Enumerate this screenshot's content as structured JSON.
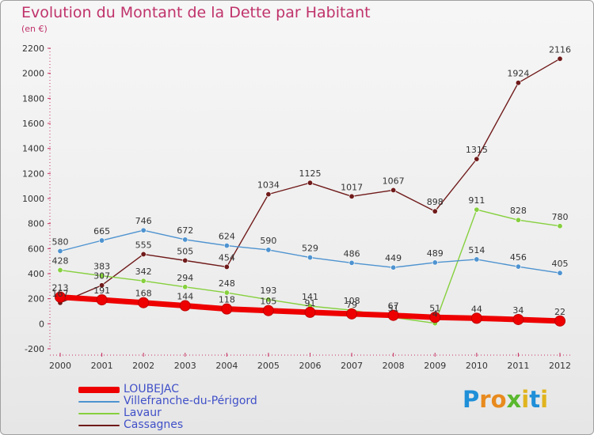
{
  "header": {
    "title": "Evolution du Montant de la Dette par Habitant",
    "subtitle": "(en €)"
  },
  "logo": {
    "text": "Proxiti",
    "letters": [
      "P",
      "r",
      "o",
      "x",
      "i",
      "t",
      "i"
    ],
    "colors": [
      "#1f8fd8",
      "#e88a1e",
      "#e88a1e",
      "#5ab82e",
      "#e0b41e",
      "#1f8fd8",
      "#e0b41e"
    ]
  },
  "chart_data": {
    "type": "line",
    "title": "Evolution du Montant de la Dette par Habitant",
    "subtitle": "(en €)",
    "categories": [
      "2000",
      "2001",
      "2002",
      "2003",
      "2004",
      "2005",
      "2006",
      "2007",
      "2008",
      "2009",
      "2010",
      "2011",
      "2012"
    ],
    "ylim": [
      -200,
      2200
    ],
    "yticks": [
      -200,
      0,
      200,
      400,
      600,
      800,
      1000,
      1200,
      1400,
      1600,
      1800,
      2000,
      2200
    ],
    "grid": false,
    "legend_position": "bottom-left",
    "series": [
      {
        "name": "LOUBEJAC",
        "color": "#ee0000",
        "values": [
          213,
          191,
          168,
          144,
          118,
          105,
          91,
          79,
          67,
          51,
          44,
          34,
          22
        ]
      },
      {
        "name": "Villefranche-du-Périgord",
        "color": "#4e93d0",
        "values": [
          580,
          665,
          746,
          672,
          624,
          590,
          529,
          486,
          449,
          489,
          514,
          456,
          405
        ]
      },
      {
        "name": "Lavaur",
        "color": "#86d03e",
        "values": [
          428,
          383,
          342,
          294,
          248,
          193,
          141,
          108,
          51,
          4,
          911,
          828,
          780
        ]
      },
      {
        "name": "Cassagnes",
        "color": "#701a1a",
        "values": [
          167,
          307,
          555,
          505,
          454,
          1034,
          1125,
          1017,
          1067,
          898,
          1315,
          1924,
          2116
        ]
      }
    ]
  }
}
